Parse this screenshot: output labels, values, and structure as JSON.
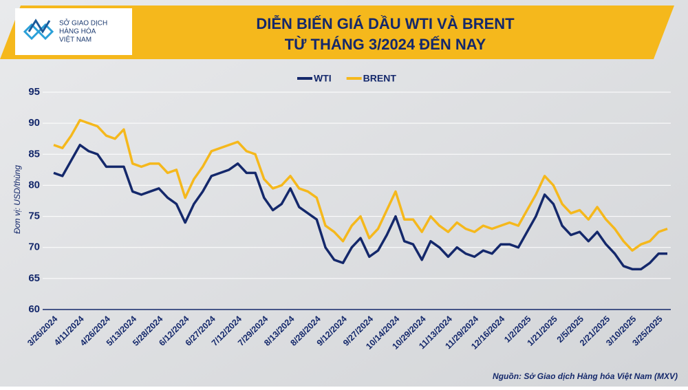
{
  "header": {
    "logo_text": [
      "SỞ GIAO DỊCH",
      "HÀNG HÓA",
      "VIỆT NAM"
    ]
  },
  "chart_data": {
    "type": "line",
    "title": "DIỄN BIẾN GIÁ DẦU WTI VÀ BRENT",
    "subtitle": "TỪ THÁNG 3/2024 ĐẾN NAY",
    "y_label": "Đơn vị: USD/thùng",
    "source": "Nguồn: Sở Giao dịch Hàng hóa Việt Nam (MXV)",
    "categories": [
      "3/26/2024",
      null,
      null,
      "4/11/2024",
      null,
      null,
      "4/26/2024",
      null,
      null,
      "5/13/2024",
      null,
      null,
      "5/28/2024",
      null,
      null,
      "6/12/2024",
      null,
      null,
      "6/27/2024",
      null,
      null,
      "7/12/2024",
      null,
      null,
      "7/29/2024",
      null,
      null,
      "8/13/2024",
      null,
      null,
      "8/28/2024",
      null,
      null,
      "9/12/2024",
      null,
      null,
      "9/27/2024",
      null,
      null,
      "10/14/2024",
      null,
      null,
      "10/29/2024",
      null,
      null,
      "11/13/2024",
      null,
      null,
      "11/29/2024",
      null,
      null,
      "12/16/2024",
      null,
      null,
      "1/2/2025",
      null,
      null,
      "1/21/2025",
      null,
      null,
      "2/5/2025",
      null,
      null,
      "2/21/2025",
      null,
      null,
      "3/10/2025",
      null,
      null,
      "3/25/2025",
      null
    ],
    "series": [
      {
        "name": "WTI",
        "color": "#14286b",
        "values": [
          82,
          81.5,
          84,
          86.5,
          85.5,
          85,
          83,
          83,
          83,
          79,
          78.5,
          79,
          79.5,
          78,
          77,
          74,
          77,
          79,
          81.5,
          82,
          82.5,
          83.5,
          82,
          82,
          78,
          76,
          77,
          79.5,
          76.5,
          75.5,
          74.5,
          70,
          68,
          67.5,
          70,
          71.5,
          68.5,
          69.5,
          72,
          75,
          71,
          70.5,
          68,
          71,
          70,
          68.5,
          70,
          69,
          68.5,
          69.5,
          69,
          70.5,
          70.5,
          70,
          72.5,
          75,
          78.5,
          77,
          73.5,
          72,
          72.5,
          71,
          72.5,
          70.5,
          69,
          67,
          66.5,
          66.5,
          67.5,
          69,
          69
        ]
      },
      {
        "name": "BRENT",
        "color": "#f5b81c",
        "values": [
          86.5,
          86,
          88,
          90.5,
          90,
          89.5,
          88,
          87.5,
          89,
          83.5,
          83,
          83.5,
          83.5,
          82,
          82.5,
          78,
          81,
          83,
          85.5,
          86,
          86.5,
          87,
          85.5,
          85,
          81,
          79.5,
          80,
          81.5,
          79.5,
          79,
          78,
          73.5,
          72.5,
          71,
          73.5,
          75,
          71.5,
          73,
          76,
          79,
          74.5,
          74.5,
          72.5,
          75,
          73.5,
          72.5,
          74,
          73,
          72.5,
          73.5,
          73,
          73.5,
          74,
          73.5,
          76,
          78.5,
          81.5,
          80,
          77,
          75.5,
          76,
          74.5,
          76.5,
          74.5,
          73,
          71,
          69.5,
          70.5,
          71,
          72.5,
          73
        ]
      }
    ],
    "ylim": [
      60,
      95
    ],
    "yticks": [
      60,
      65,
      70,
      75,
      80,
      85,
      90,
      95
    ],
    "grid": true
  }
}
